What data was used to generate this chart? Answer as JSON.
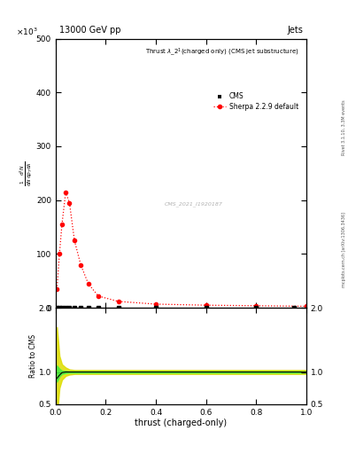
{
  "title_top": "13000 GeV pp",
  "title_right": "Jets",
  "plot_title": "Thrust λ_2¹(charged only) (CMS jet substructure)",
  "ylabel_ratio": "Ratio to CMS",
  "xlabel": "thrust (charged-only)",
  "rivet_label": "Rivet 3.1.10, 3.3M events",
  "arxiv_label": "mcplots.cern.ch [arXiv:1306.3436]",
  "watermark": "CMS_2021_I1920187",
  "ylim_main": [
    0,
    500
  ],
  "ylim_ratio": [
    0.5,
    2.0
  ],
  "xlim": [
    0.0,
    1.0
  ],
  "sherpa_x": [
    0.005,
    0.015,
    0.025,
    0.04,
    0.055,
    0.075,
    0.1,
    0.13,
    0.17,
    0.25,
    0.4,
    0.6,
    0.8,
    1.0
  ],
  "sherpa_y": [
    35,
    100,
    155,
    215,
    195,
    125,
    80,
    45,
    22,
    12,
    7,
    5,
    4,
    3
  ],
  "cms_x": [
    0.005,
    0.015,
    0.025,
    0.04,
    0.055,
    0.075,
    0.1,
    0.13,
    0.17,
    0.25,
    0.4,
    0.6,
    0.8,
    0.95
  ],
  "cms_y": [
    0.5,
    0.5,
    0.5,
    0.5,
    0.5,
    0.5,
    0.5,
    0.5,
    0.5,
    0.5,
    0.5,
    0.5,
    0.5,
    0.5
  ],
  "ratio_x": [
    0.005,
    0.015,
    0.025,
    0.04,
    0.055,
    0.075,
    0.1,
    0.13,
    0.17,
    0.25,
    0.4,
    0.6,
    0.8,
    1.0
  ],
  "ratio_y": [
    0.9,
    0.95,
    0.99,
    1.0,
    1.0,
    1.0,
    1.0,
    1.0,
    1.0,
    1.0,
    1.0,
    1.0,
    1.0,
    1.0
  ],
  "ratio_band_green_lo": [
    0.85,
    0.93,
    0.97,
    0.985,
    0.99,
    0.99,
    0.99,
    0.99,
    0.99,
    0.99,
    0.99,
    0.99,
    0.99,
    0.99
  ],
  "ratio_band_green_hi": [
    1.1,
    1.05,
    1.02,
    1.015,
    1.01,
    1.01,
    1.01,
    1.01,
    1.01,
    1.01,
    1.01,
    1.01,
    1.01,
    1.01
  ],
  "ratio_band_yellow_lo": [
    0.3,
    0.75,
    0.88,
    0.94,
    0.96,
    0.97,
    0.97,
    0.97,
    0.97,
    0.97,
    0.97,
    0.97,
    0.97,
    0.97
  ],
  "ratio_band_yellow_hi": [
    1.7,
    1.25,
    1.12,
    1.07,
    1.04,
    1.03,
    1.03,
    1.03,
    1.03,
    1.03,
    1.03,
    1.03,
    1.03,
    1.03
  ],
  "sherpa_color": "#ff0000",
  "cms_color": "#000000",
  "green_band_color": "#44ee44",
  "yellow_band_color": "#dddd00",
  "background_color": "#ffffff"
}
